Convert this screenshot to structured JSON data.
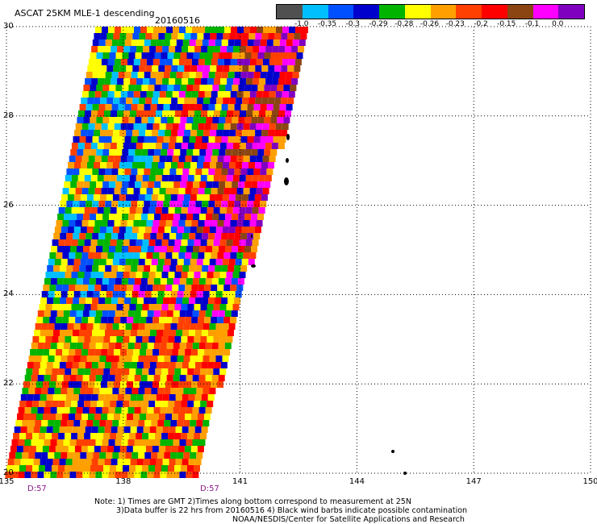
{
  "header": {
    "title": "ASCAT 25KM MLE-1 descending",
    "date": "20160516"
  },
  "legend": {
    "labels": [
      "-1.0",
      "-0.35",
      "-0.3",
      "-0.29",
      "-0.28",
      "-0.26",
      "-0.23",
      "-0.2",
      "-0.15",
      "-0.1",
      "0.0"
    ],
    "colors": [
      "#505050",
      "#00bfff",
      "#0050ff",
      "#0000cc",
      "#00b400",
      "#ffff00",
      "#ffa000",
      "#ff4000",
      "#ff0000",
      "#8b4513",
      "#ff00ff",
      "#8000c0"
    ]
  },
  "map": {
    "lon_labels": [
      "135",
      "138",
      "141",
      "144",
      "147",
      "150"
    ],
    "lat_labels": [
      "20",
      "22",
      "24",
      "26",
      "28",
      "30"
    ],
    "lon_range": [
      135,
      150
    ],
    "lat_range": [
      20,
      30
    ],
    "grid": "dotted",
    "time_labels": [
      "D:57",
      "D:57"
    ]
  },
  "note": {
    "line1": "Note: 1) Times are GMT 2)Times along bottom correspond to measurement at 25N",
    "line2": "3)Data buffer is 22 hrs from 20160516 4) Black wind barbs indicate possible contamination",
    "line3": "NOAA/NESDIS/Center for Satellite Applications and Research"
  }
}
